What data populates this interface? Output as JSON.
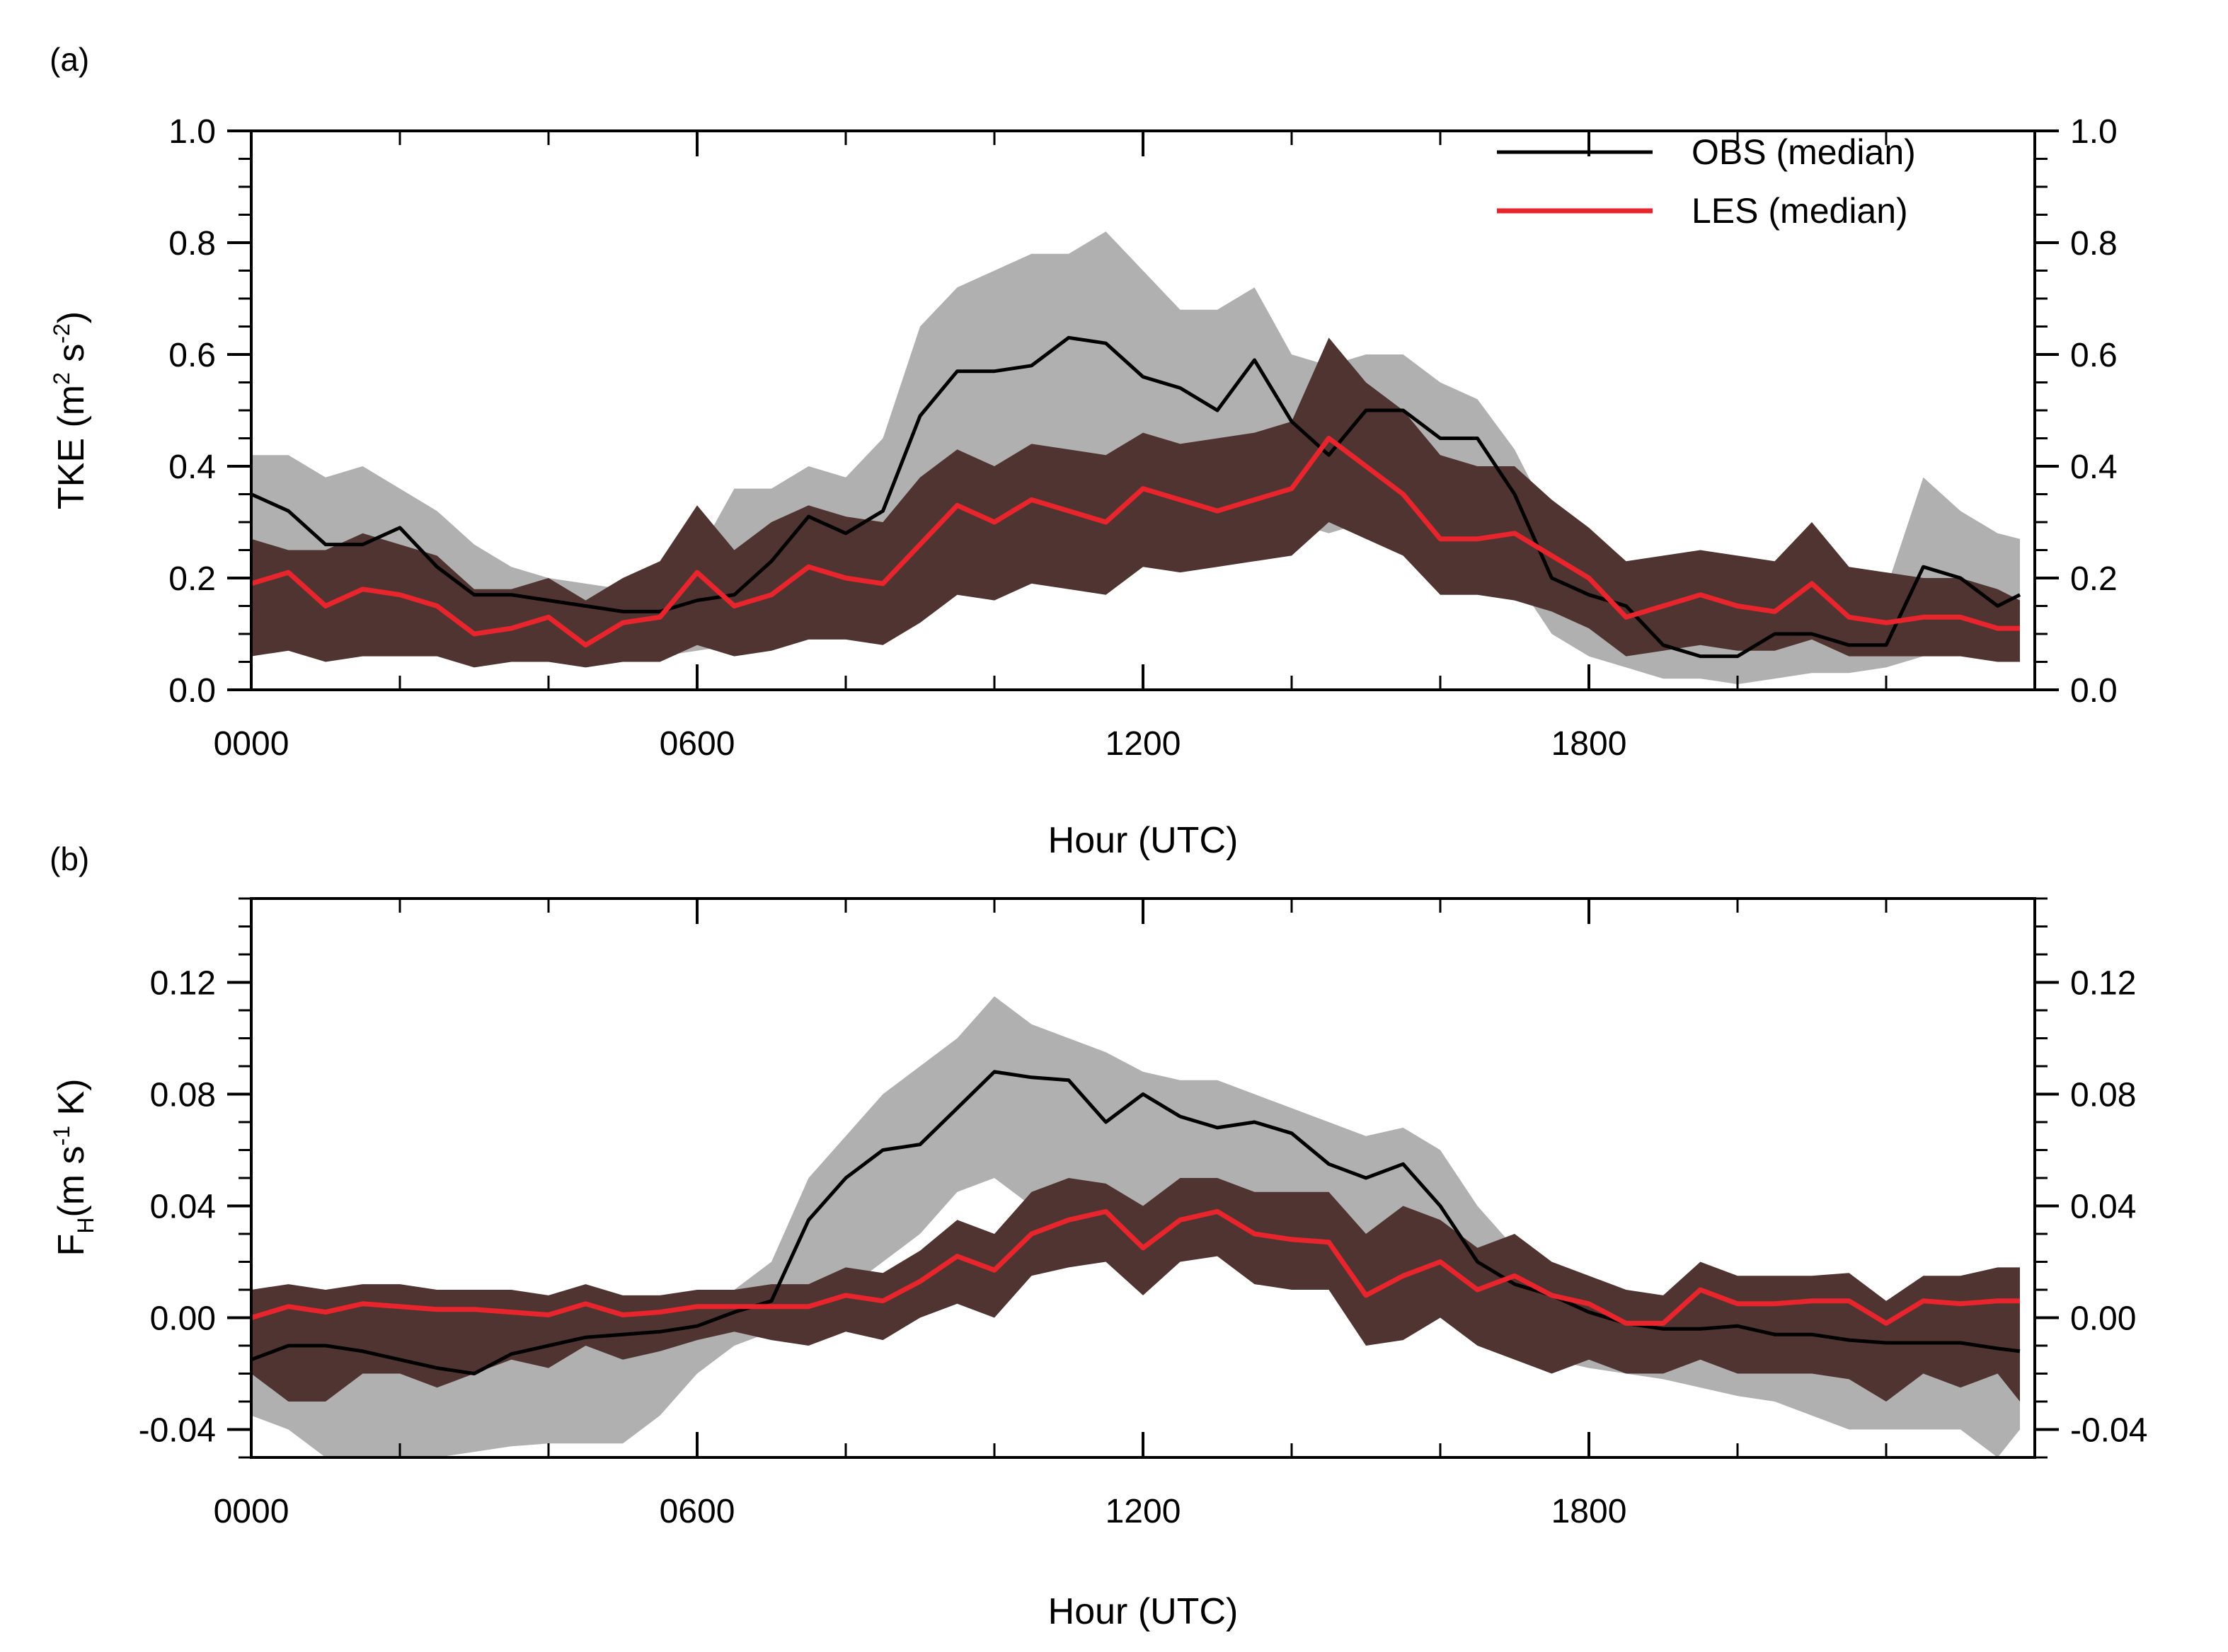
{
  "chart_data": [
    {
      "type": "line",
      "panel_label": "(a)",
      "ylabel_main": "TKE (m",
      "ylabel_sup1": "2",
      "ylabel_mid": " s",
      "ylabel_sup2": "-2",
      "ylabel_end": ")",
      "xlabel": "Hour (UTC)",
      "xlim": [
        0,
        24
      ],
      "ylim": [
        0,
        1.0
      ],
      "xticks": [
        0,
        6,
        12,
        18
      ],
      "xtick_labels": [
        "0000",
        "0600",
        "1200",
        "1800"
      ],
      "yticks": [
        0.0,
        0.2,
        0.4,
        0.6,
        0.8,
        1.0
      ],
      "ytick_labels": [
        "0.0",
        "0.2",
        "0.4",
        "0.6",
        "0.8",
        "1.0"
      ],
      "legend": [
        {
          "name": "OBS (median)",
          "color": "#000000"
        },
        {
          "name": "LES (median)",
          "color": "#e8242c"
        }
      ],
      "x": [
        0,
        0.5,
        1,
        1.5,
        2,
        2.5,
        3,
        3.5,
        4,
        4.5,
        5,
        5.5,
        6,
        6.5,
        7,
        7.5,
        8,
        8.5,
        9,
        9.5,
        10,
        10.5,
        11,
        11.5,
        12,
        12.5,
        13,
        13.5,
        14,
        14.5,
        15,
        15.5,
        16,
        16.5,
        17,
        17.5,
        18,
        18.5,
        19,
        19.5,
        20,
        20.5,
        21,
        21.5,
        22,
        22.5,
        23,
        23.5,
        23.8
      ],
      "series": [
        {
          "name": "OBS (median)",
          "color": "#000000",
          "values": [
            0.35,
            0.32,
            0.26,
            0.26,
            0.29,
            0.22,
            0.17,
            0.17,
            0.16,
            0.15,
            0.14,
            0.14,
            0.16,
            0.17,
            0.23,
            0.31,
            0.28,
            0.32,
            0.49,
            0.57,
            0.57,
            0.58,
            0.63,
            0.62,
            0.56,
            0.54,
            0.5,
            0.59,
            0.48,
            0.42,
            0.5,
            0.5,
            0.45,
            0.45,
            0.35,
            0.2,
            0.17,
            0.15,
            0.08,
            0.06,
            0.06,
            0.1,
            0.1,
            0.08,
            0.08,
            0.22,
            0.2,
            0.15,
            0.17
          ]
        },
        {
          "name": "LES (median)",
          "color": "#e8242c",
          "values": [
            0.19,
            0.21,
            0.15,
            0.18,
            0.17,
            0.15,
            0.1,
            0.11,
            0.13,
            0.08,
            0.12,
            0.13,
            0.21,
            0.15,
            0.17,
            0.22,
            0.2,
            0.19,
            0.26,
            0.33,
            0.3,
            0.34,
            0.32,
            0.3,
            0.36,
            0.34,
            0.32,
            0.34,
            0.36,
            0.45,
            0.4,
            0.35,
            0.27,
            0.27,
            0.28,
            0.24,
            0.2,
            0.13,
            0.15,
            0.17,
            0.15,
            0.14,
            0.19,
            0.13,
            0.12,
            0.13,
            0.13,
            0.11,
            0.11
          ]
        }
      ],
      "bands": [
        {
          "name": "OBS spread",
          "color": "#b0b0b0",
          "upper": [
            0.42,
            0.42,
            0.38,
            0.4,
            0.36,
            0.32,
            0.26,
            0.22,
            0.2,
            0.19,
            0.18,
            0.2,
            0.24,
            0.36,
            0.36,
            0.4,
            0.38,
            0.45,
            0.65,
            0.72,
            0.75,
            0.78,
            0.78,
            0.82,
            0.75,
            0.68,
            0.68,
            0.72,
            0.6,
            0.58,
            0.6,
            0.6,
            0.55,
            0.52,
            0.43,
            0.3,
            0.25,
            0.2,
            0.17,
            0.16,
            0.16,
            0.2,
            0.2,
            0.18,
            0.18,
            0.38,
            0.32,
            0.28,
            0.27
          ],
          "lower": [
            0.08,
            0.08,
            0.07,
            0.07,
            0.08,
            0.07,
            0.06,
            0.06,
            0.06,
            0.05,
            0.05,
            0.06,
            0.07,
            0.08,
            0.1,
            0.15,
            0.18,
            0.2,
            0.28,
            0.4,
            0.4,
            0.36,
            0.32,
            0.42,
            0.36,
            0.35,
            0.3,
            0.35,
            0.3,
            0.28,
            0.3,
            0.32,
            0.3,
            0.28,
            0.2,
            0.1,
            0.06,
            0.04,
            0.02,
            0.02,
            0.01,
            0.02,
            0.03,
            0.03,
            0.04,
            0.06,
            0.07,
            0.06,
            0.07
          ]
        },
        {
          "name": "LES spread",
          "color": "#4f3431",
          "upper": [
            0.27,
            0.25,
            0.25,
            0.28,
            0.26,
            0.24,
            0.18,
            0.18,
            0.2,
            0.16,
            0.2,
            0.23,
            0.33,
            0.25,
            0.3,
            0.33,
            0.31,
            0.3,
            0.38,
            0.43,
            0.4,
            0.44,
            0.43,
            0.42,
            0.46,
            0.44,
            0.45,
            0.46,
            0.48,
            0.63,
            0.55,
            0.5,
            0.42,
            0.4,
            0.4,
            0.34,
            0.29,
            0.23,
            0.24,
            0.25,
            0.24,
            0.23,
            0.3,
            0.22,
            0.21,
            0.2,
            0.2,
            0.18,
            0.16
          ],
          "lower": [
            0.06,
            0.07,
            0.05,
            0.06,
            0.06,
            0.06,
            0.04,
            0.05,
            0.05,
            0.04,
            0.05,
            0.05,
            0.08,
            0.06,
            0.07,
            0.09,
            0.09,
            0.08,
            0.12,
            0.17,
            0.16,
            0.19,
            0.18,
            0.17,
            0.22,
            0.21,
            0.22,
            0.23,
            0.24,
            0.3,
            0.27,
            0.24,
            0.17,
            0.17,
            0.16,
            0.14,
            0.11,
            0.06,
            0.07,
            0.08,
            0.07,
            0.07,
            0.09,
            0.06,
            0.06,
            0.06,
            0.06,
            0.05,
            0.05
          ]
        }
      ]
    },
    {
      "type": "line",
      "panel_label": "(b)",
      "ylabel_main": "F",
      "ylabel_sub": "H",
      "ylabel_rest": "(m s",
      "ylabel_sup": "-1",
      "ylabel_end": " K)",
      "xlabel": "Hour (UTC)",
      "xlim": [
        0,
        24
      ],
      "ylim": [
        -0.05,
        0.15
      ],
      "xticks": [
        0,
        6,
        12,
        18
      ],
      "xtick_labels": [
        "0000",
        "0600",
        "1200",
        "1800"
      ],
      "yticks": [
        -0.04,
        0.0,
        0.04,
        0.08,
        0.12
      ],
      "ytick_labels": [
        "-0.04",
        "0.00",
        "0.04",
        "0.08",
        "0.12"
      ],
      "x": [
        0,
        0.5,
        1,
        1.5,
        2,
        2.5,
        3,
        3.5,
        4,
        4.5,
        5,
        5.5,
        6,
        6.5,
        7,
        7.5,
        8,
        8.5,
        9,
        9.5,
        10,
        10.5,
        11,
        11.5,
        12,
        12.5,
        13,
        13.5,
        14,
        14.5,
        15,
        15.5,
        16,
        16.5,
        17,
        17.5,
        18,
        18.5,
        19,
        19.5,
        20,
        20.5,
        21,
        21.5,
        22,
        22.5,
        23,
        23.5,
        23.8
      ],
      "series": [
        {
          "name": "OBS (median)",
          "color": "#000000",
          "values": [
            -0.015,
            -0.01,
            -0.01,
            -0.012,
            -0.015,
            -0.018,
            -0.02,
            -0.013,
            -0.01,
            -0.007,
            -0.006,
            -0.005,
            -0.003,
            0.002,
            0.006,
            0.035,
            0.05,
            0.06,
            0.062,
            0.075,
            0.088,
            0.086,
            0.085,
            0.07,
            0.08,
            0.072,
            0.068,
            0.07,
            0.066,
            0.055,
            0.05,
            0.055,
            0.04,
            0.02,
            0.012,
            0.008,
            0.002,
            -0.002,
            -0.004,
            -0.004,
            -0.003,
            -0.006,
            -0.006,
            -0.008,
            -0.009,
            -0.009,
            -0.009,
            -0.011,
            -0.012
          ]
        },
        {
          "name": "LES (median)",
          "color": "#e8242c",
          "values": [
            0.0,
            0.004,
            0.002,
            0.005,
            0.004,
            0.003,
            0.003,
            0.002,
            0.001,
            0.005,
            0.001,
            0.002,
            0.004,
            0.004,
            0.004,
            0.004,
            0.008,
            0.006,
            0.013,
            0.022,
            0.017,
            0.03,
            0.035,
            0.038,
            0.025,
            0.035,
            0.038,
            0.03,
            0.028,
            0.027,
            0.008,
            0.015,
            0.02,
            0.01,
            0.015,
            0.008,
            0.005,
            -0.002,
            -0.002,
            0.01,
            0.005,
            0.005,
            0.006,
            0.006,
            -0.002,
            0.006,
            0.005,
            0.006,
            0.006
          ]
        }
      ],
      "bands": [
        {
          "name": "OBS spread",
          "color": "#b0b0b0",
          "upper": [
            0.005,
            0.008,
            0.008,
            0.008,
            0.008,
            0.008,
            0.008,
            0.008,
            0.008,
            0.008,
            0.008,
            0.008,
            0.008,
            0.01,
            0.02,
            0.05,
            0.065,
            0.08,
            0.09,
            0.1,
            0.115,
            0.105,
            0.1,
            0.095,
            0.088,
            0.085,
            0.085,
            0.08,
            0.075,
            0.07,
            0.065,
            0.068,
            0.06,
            0.04,
            0.025,
            0.018,
            0.01,
            0.005,
            0.004,
            0.004,
            0.005,
            0.005,
            0.005,
            0.005,
            0.004,
            0.004,
            0.004,
            0.004,
            0.004
          ],
          "lower": [
            -0.035,
            -0.04,
            -0.05,
            -0.05,
            -0.05,
            -0.05,
            -0.048,
            -0.046,
            -0.045,
            -0.045,
            -0.045,
            -0.035,
            -0.02,
            -0.01,
            -0.005,
            0.0,
            0.01,
            0.02,
            0.03,
            0.045,
            0.05,
            0.04,
            0.04,
            0.035,
            0.04,
            0.04,
            0.035,
            0.035,
            0.035,
            0.03,
            0.02,
            0.018,
            0.01,
            -0.005,
            -0.012,
            -0.015,
            -0.018,
            -0.02,
            -0.022,
            -0.025,
            -0.028,
            -0.03,
            -0.035,
            -0.04,
            -0.04,
            -0.04,
            -0.04,
            -0.05,
            -0.04
          ]
        },
        {
          "name": "LES spread",
          "color": "#4f3431",
          "upper": [
            0.01,
            0.012,
            0.01,
            0.012,
            0.012,
            0.01,
            0.01,
            0.01,
            0.008,
            0.012,
            0.008,
            0.008,
            0.01,
            0.01,
            0.012,
            0.012,
            0.018,
            0.016,
            0.024,
            0.035,
            0.03,
            0.045,
            0.05,
            0.048,
            0.04,
            0.05,
            0.05,
            0.045,
            0.045,
            0.045,
            0.03,
            0.04,
            0.035,
            0.025,
            0.03,
            0.02,
            0.015,
            0.01,
            0.008,
            0.02,
            0.015,
            0.015,
            0.015,
            0.016,
            0.006,
            0.015,
            0.015,
            0.018,
            0.018
          ],
          "lower": [
            -0.02,
            -0.03,
            -0.03,
            -0.02,
            -0.02,
            -0.025,
            -0.02,
            -0.015,
            -0.018,
            -0.01,
            -0.015,
            -0.012,
            -0.008,
            -0.005,
            -0.008,
            -0.01,
            -0.005,
            -0.008,
            0.0,
            0.005,
            0.0,
            0.015,
            0.018,
            0.02,
            0.008,
            0.02,
            0.022,
            0.012,
            0.01,
            0.01,
            -0.01,
            -0.008,
            0.0,
            -0.01,
            -0.015,
            -0.02,
            -0.015,
            -0.02,
            -0.02,
            -0.015,
            -0.02,
            -0.02,
            -0.02,
            -0.022,
            -0.03,
            -0.02,
            -0.025,
            -0.02,
            -0.03
          ]
        }
      ]
    }
  ]
}
